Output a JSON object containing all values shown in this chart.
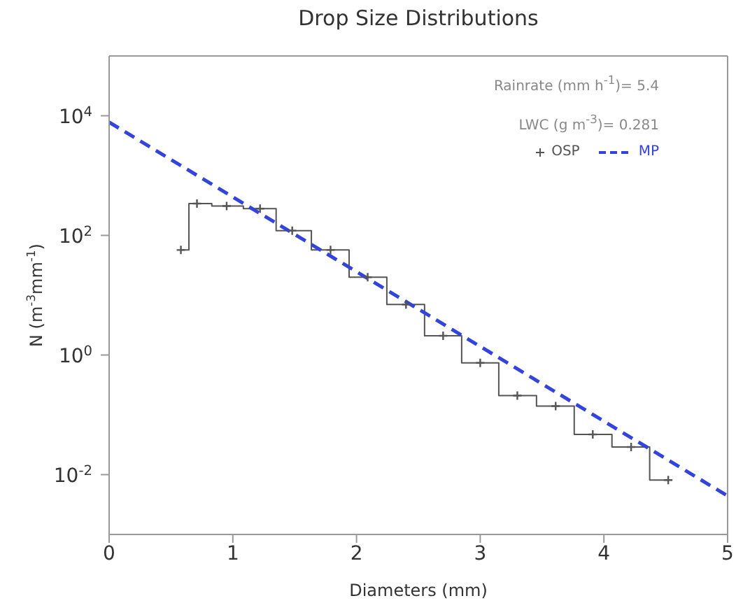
{
  "chart_data": {
    "type": "line",
    "title": "Drop Size Distributions",
    "xlabel": "Diameters (mm)",
    "ylabel": "N (m$^{-3}$mm$^{-1}$)",
    "annotations": [
      "Rainrate (mm h$^{-1}$)= 5.4",
      "LWC (g m$^{-3}$)= 0.281"
    ],
    "series": [
      {
        "name": "OSP",
        "type": "step",
        "color": "#555555",
        "marker": "cross",
        "line_style": "solid",
        "x": [
          0.58,
          0.71,
          0.95,
          1.22,
          1.48,
          1.79,
          2.09,
          2.4,
          2.7,
          3.0,
          3.3,
          3.61,
          3.91,
          4.22,
          4.52
        ],
        "values": [
          57,
          340,
          310,
          280,
          120,
          57,
          20,
          7,
          2.1,
          0.74,
          0.21,
          0.14,
          0.047,
          0.029,
          0.0081
        ]
      },
      {
        "name": "MP",
        "type": "line",
        "color": "#3344dd",
        "marker": "none",
        "line_style": "dashed",
        "x": [
          0,
          5
        ],
        "values": [
          7800,
          0.0044
        ]
      }
    ],
    "xlim": [
      0,
      5
    ],
    "xticks": [
      0,
      1,
      2,
      3,
      4,
      5
    ],
    "ylim": [
      0.001,
      100000
    ],
    "yticks": [
      {
        "value": 0.01,
        "label": "10$^{-2}$"
      },
      {
        "value": 1,
        "label": "10$^{0}$"
      },
      {
        "value": 100,
        "label": "10$^{2}$"
      },
      {
        "value": 10000,
        "label": "10$^{4}$"
      }
    ],
    "log": "y",
    "grid": false,
    "legend": "top right"
  }
}
